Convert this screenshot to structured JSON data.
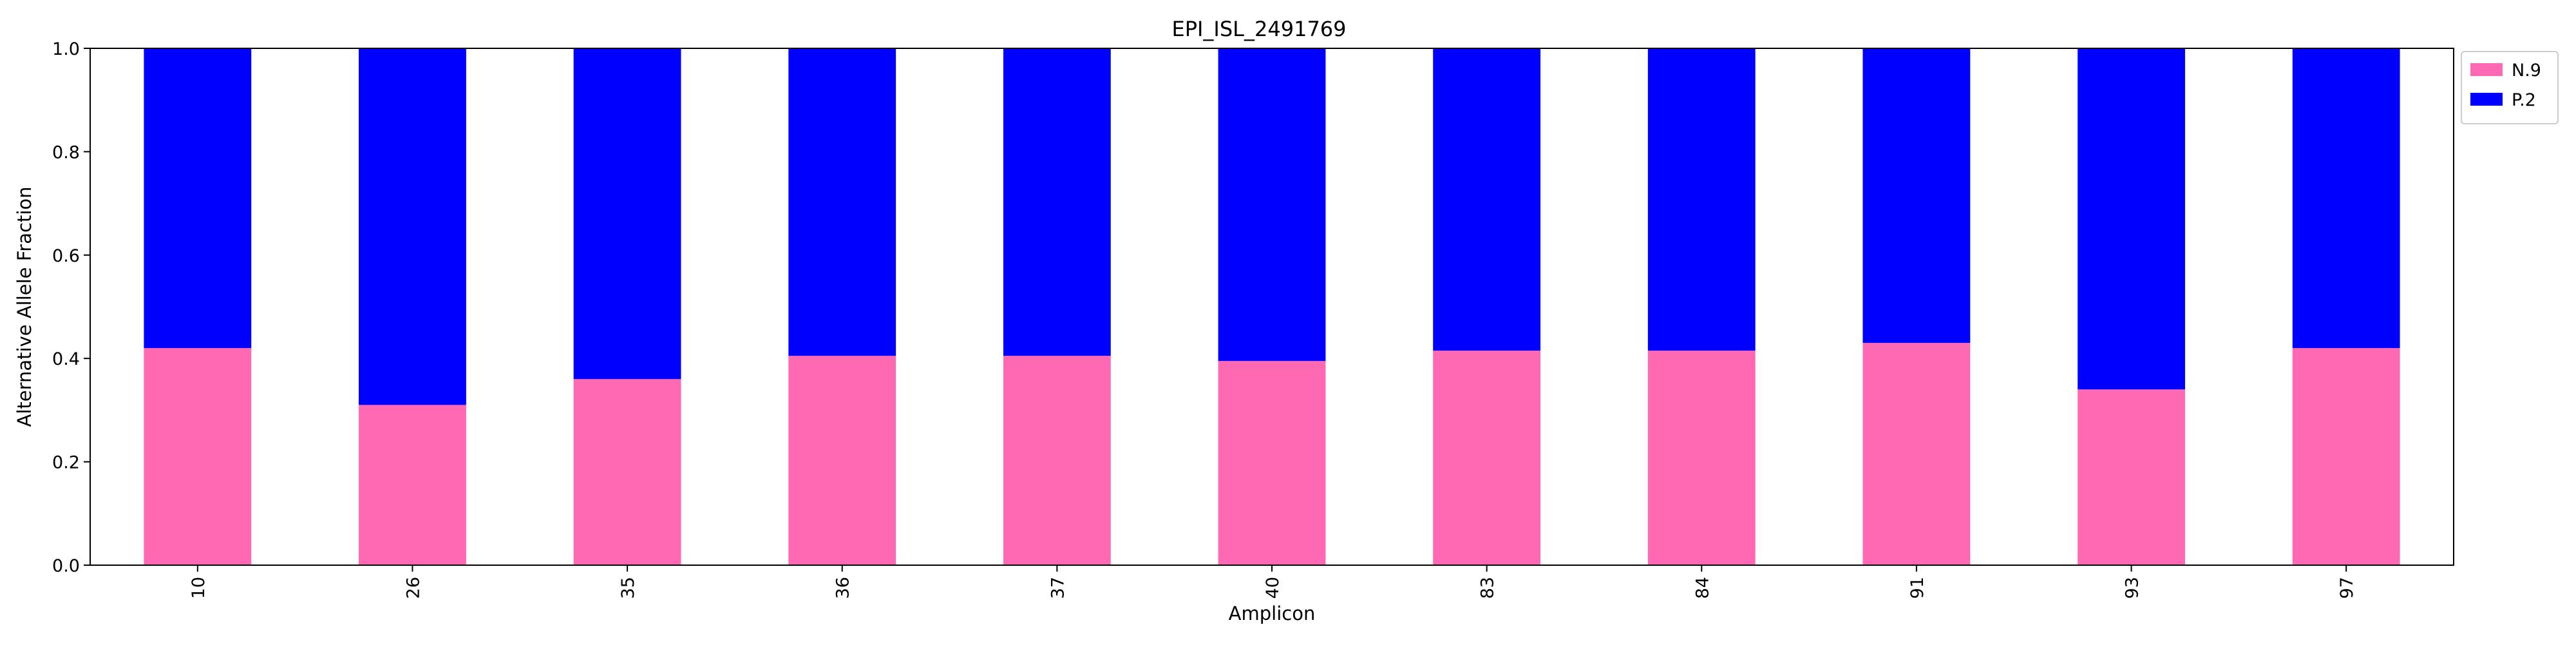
{
  "chart_data": {
    "type": "bar",
    "stacked": true,
    "title": "EPI_ISL_2491769",
    "xlabel": "Amplicon",
    "ylabel": "Alternative Allele Fraction",
    "ylim": [
      0,
      1.0
    ],
    "yticks": [
      "0.0",
      "0.2",
      "0.4",
      "0.6",
      "0.8",
      "1.0"
    ],
    "categories": [
      "10",
      "26",
      "35",
      "36",
      "37",
      "40",
      "83",
      "84",
      "91",
      "93",
      "97"
    ],
    "series": [
      {
        "name": "N.9",
        "color": "#ff69b4",
        "values": [
          0.42,
          0.31,
          0.36,
          0.405,
          0.405,
          0.395,
          0.415,
          0.415,
          0.43,
          0.34,
          0.42
        ]
      },
      {
        "name": "P.2",
        "color": "#0000ff",
        "values": [
          0.58,
          0.69,
          0.64,
          0.595,
          0.595,
          0.605,
          0.585,
          0.585,
          0.57,
          0.66,
          0.58
        ]
      }
    ],
    "grid": false,
    "legend_position": "upper-right-outside"
  }
}
